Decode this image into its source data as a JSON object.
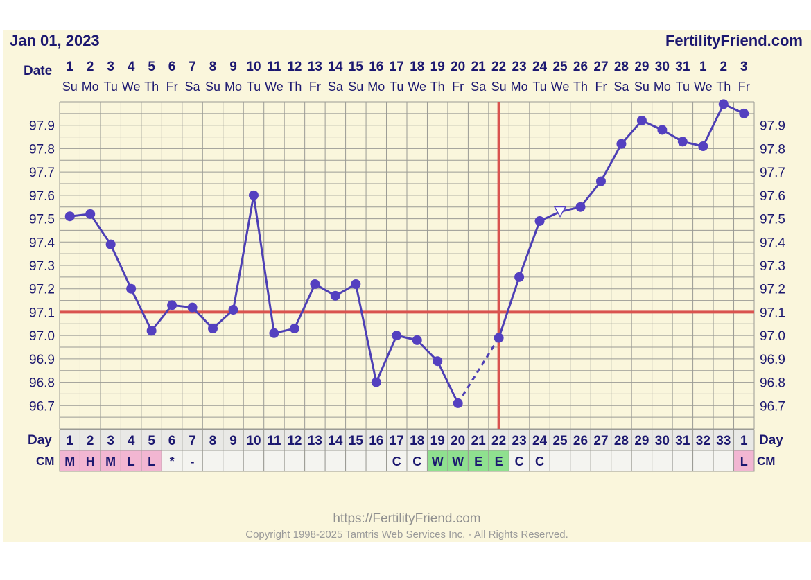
{
  "header": {
    "date": "Jan 01, 2023",
    "site": "FertilityFriend.com",
    "date_label": "Date",
    "day_label": "Day",
    "cm_label": "CM"
  },
  "footer": {
    "url": "https://FertilityFriend.com",
    "copyright": "Copyright 1998-2025 Tamtris Web Services Inc. - All Rights Reserved."
  },
  "colors": {
    "background": "#faf6dc",
    "grid": "#9b9b95",
    "line": "#4d3fb5",
    "marker": "#5440c0",
    "red_line": "#d9534f",
    "cm_pink": "#f2b6d2",
    "cm_green": "#8fe08f",
    "row_bg": "#f4f4f0"
  },
  "chart_data": {
    "type": "line",
    "xlabel": "Day",
    "ylim": [
      96.6,
      98.0
    ],
    "yticks": [
      96.7,
      96.8,
      96.9,
      97.0,
      97.1,
      97.2,
      97.3,
      97.4,
      97.5,
      97.6,
      97.7,
      97.8,
      97.9
    ],
    "dates": [
      "1",
      "2",
      "3",
      "4",
      "5",
      "6",
      "7",
      "8",
      "9",
      "10",
      "11",
      "12",
      "13",
      "14",
      "15",
      "16",
      "17",
      "18",
      "19",
      "20",
      "21",
      "22",
      "23",
      "24",
      "25",
      "26",
      "27",
      "28",
      "29",
      "30",
      "31",
      "1",
      "2",
      "3"
    ],
    "weekdays": [
      "Su",
      "Mo",
      "Tu",
      "We",
      "Th",
      "Fr",
      "Sa",
      "Su",
      "Mo",
      "Tu",
      "We",
      "Th",
      "Fr",
      "Sa",
      "Su",
      "Mo",
      "Tu",
      "We",
      "Th",
      "Fr",
      "Sa",
      "Su",
      "Mo",
      "Tu",
      "We",
      "Th",
      "Fr",
      "Sa",
      "Su",
      "Mo",
      "Tu",
      "We",
      "Th",
      "Fr"
    ],
    "cycle_days": [
      "1",
      "2",
      "3",
      "4",
      "5",
      "6",
      "7",
      "8",
      "9",
      "10",
      "11",
      "12",
      "13",
      "14",
      "15",
      "16",
      "17",
      "18",
      "19",
      "20",
      "21",
      "22",
      "23",
      "24",
      "25",
      "26",
      "27",
      "28",
      "29",
      "30",
      "31",
      "32",
      "33",
      "1"
    ],
    "temperatures": [
      97.51,
      97.52,
      97.39,
      97.2,
      97.02,
      97.13,
      97.12,
      97.03,
      97.11,
      97.6,
      97.01,
      97.03,
      97.22,
      97.17,
      97.22,
      96.8,
      97.0,
      96.98,
      96.89,
      96.71,
      null,
      96.99,
      97.25,
      97.49,
      97.53,
      97.55,
      97.66,
      97.82,
      97.92,
      97.88,
      97.83,
      97.81,
      97.99,
      97.95
    ],
    "discarded_index": 24,
    "coverline": 97.1,
    "ovulation_day_index": 21,
    "cervical_mucus": [
      "M",
      "H",
      "M",
      "L",
      "L",
      "*",
      "-",
      "",
      "",
      "",
      "",
      "",
      "",
      "",
      "",
      "",
      "C",
      "C",
      "W",
      "W",
      "E",
      "E",
      "C",
      "C",
      "",
      "",
      "",
      "",
      "",
      "",
      "",
      "",
      "",
      "L"
    ],
    "cm_colors": [
      "pink",
      "pink",
      "pink",
      "pink",
      "pink",
      "",
      "",
      "",
      "",
      "",
      "",
      "",
      "",
      "",
      "",
      "",
      "",
      "",
      "green",
      "green",
      "green",
      "green",
      "",
      "",
      "",
      "",
      "",
      "",
      "",
      "",
      "",
      "",
      "",
      "pink"
    ]
  }
}
